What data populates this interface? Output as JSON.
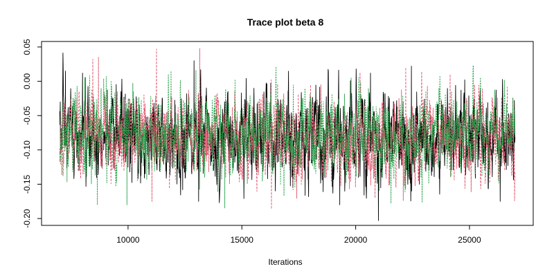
{
  "chart_data": {
    "type": "line",
    "title": "Trace plot beta 8",
    "xlabel": "Iterations",
    "ylabel": "",
    "xlim": [
      6200,
      27800
    ],
    "ylim": [
      -0.21,
      0.058
    ],
    "x_ticks": [
      10000,
      15000,
      20000,
      25000
    ],
    "x_tick_labels": [
      "10000",
      "15000",
      "20000",
      "25000"
    ],
    "y_ticks": [
      -0.2,
      -0.15,
      -0.1,
      -0.05,
      0.0,
      0.05
    ],
    "y_tick_labels": [
      "-0.20",
      "-0.15",
      "-0.10",
      "-0.05",
      "0.00",
      "0.05"
    ],
    "grid": false,
    "legend": "none",
    "iterations": {
      "start": 7000,
      "end": 27000
    },
    "series": [
      {
        "color": "#000000",
        "dash": "solid",
        "mean": -0.082,
        "sd": 0.032,
        "highlights": [
          [
            7250,
            0.015
          ],
          [
            8000,
            0.012
          ],
          [
            12900,
            0.03
          ],
          [
            22450,
            0.022
          ],
          [
            20650,
            0.012
          ],
          [
            21000,
            -0.203
          ],
          [
            26350,
            -0.175
          ],
          [
            12400,
            -0.158
          ],
          [
            13100,
            -0.175
          ],
          [
            19300,
            -0.18
          ]
        ]
      },
      {
        "color": "#DF536B",
        "dash": "dashed",
        "mean": -0.08,
        "sd": 0.03,
        "highlights": [
          [
            8700,
            0.035
          ],
          [
            8450,
            0.032
          ],
          [
            11250,
            0.047
          ],
          [
            13150,
            0.048
          ],
          [
            22200,
            0.02
          ],
          [
            24150,
            0.01
          ],
          [
            16300,
            -0.186
          ],
          [
            11050,
            -0.175
          ],
          [
            20850,
            -0.17
          ]
        ]
      },
      {
        "color": "#22A147",
        "dash": "dotted",
        "mean": -0.078,
        "sd": 0.029,
        "highlights": [
          [
            8100,
            0.005
          ],
          [
            23700,
            0.008
          ],
          [
            19800,
            0.005
          ],
          [
            8650,
            -0.18
          ],
          [
            14250,
            -0.185
          ],
          [
            21550,
            -0.178
          ],
          [
            9950,
            -0.18
          ]
        ]
      }
    ]
  }
}
